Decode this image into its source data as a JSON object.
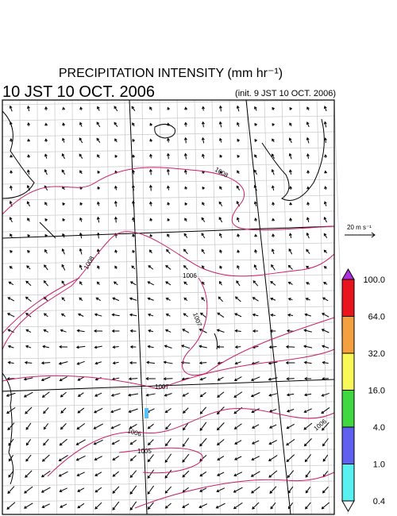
{
  "header": {
    "title": "PRECIPITATION INTENSITY (mm hr⁻¹)",
    "valid_time": "10 JST 10 OCT. 2006",
    "init_time": "(init. 9 JST 10 OCT. 2006)"
  },
  "wind_scale": {
    "label": "20 m s⁻¹"
  },
  "colorbar": {
    "levels": [
      "100.0",
      "64.0",
      "32.0",
      "16.0",
      "4.0",
      "1.0",
      "0.4"
    ],
    "colors": [
      "#b030e0",
      "#e8141e",
      "#f4a040",
      "#f8f858",
      "#40d840",
      "#6060f0",
      "#58f0f0",
      "#ffffff"
    ]
  },
  "map": {
    "isobar_labels": [
      "1008",
      "1008",
      "1006",
      "1007",
      "1007",
      "1006",
      "1005",
      "1006"
    ]
  }
}
